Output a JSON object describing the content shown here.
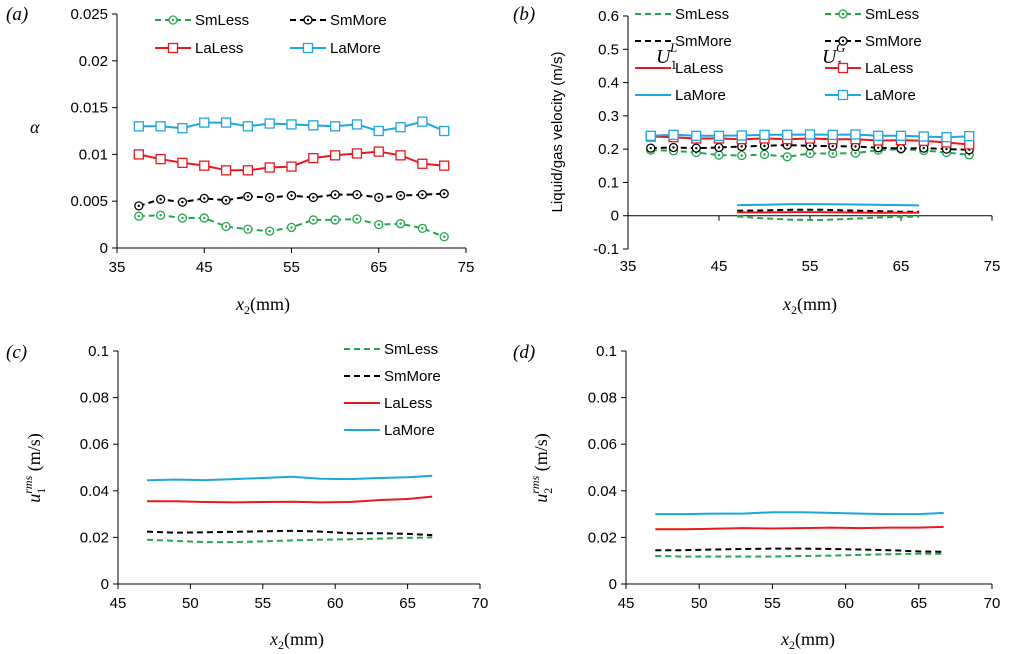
{
  "colors": {
    "SmLess": "#22a84a",
    "SmMore": "#000000",
    "LaLess": "#e8191f",
    "LaMore": "#1fa6e0"
  },
  "chart_data": [
    {
      "panel": "(a)",
      "type": "line",
      "xlabel": "x2(mm)",
      "ylabel": "α",
      "xlim": [
        35,
        75
      ],
      "ylim": [
        0,
        0.025
      ],
      "xticks": [
        "35",
        "45",
        "55",
        "65",
        "75"
      ],
      "yticks": [
        "0",
        "0.005",
        "0.01",
        "0.015",
        "0.02",
        "0.025"
      ],
      "legend_placement": "top",
      "x": [
        37.5,
        40,
        42.5,
        45,
        47.5,
        50,
        52.5,
        55,
        57.5,
        60,
        62.5,
        65,
        67.5,
        70,
        72.5
      ],
      "series": [
        {
          "name": "SmLess",
          "dash": true,
          "marker": "circle",
          "values": [
            0.0034,
            0.0035,
            0.0032,
            0.0032,
            0.0023,
            0.002,
            0.0018,
            0.0022,
            0.003,
            0.003,
            0.0031,
            0.0025,
            0.0026,
            0.0021,
            0.0012
          ]
        },
        {
          "name": "SmMore",
          "dash": true,
          "marker": "circle",
          "values": [
            0.0045,
            0.0052,
            0.0049,
            0.0053,
            0.0051,
            0.0055,
            0.0054,
            0.0056,
            0.0054,
            0.0057,
            0.0057,
            0.0054,
            0.0056,
            0.0057,
            0.0058
          ]
        },
        {
          "name": "LaLess",
          "dash": false,
          "marker": "square",
          "values": [
            0.01,
            0.0095,
            0.0091,
            0.0088,
            0.0083,
            0.0083,
            0.0086,
            0.0087,
            0.0096,
            0.0099,
            0.0101,
            0.0103,
            0.0099,
            0.009,
            0.0088
          ]
        },
        {
          "name": "LaMore",
          "dash": false,
          "marker": "square",
          "values": [
            0.013,
            0.013,
            0.0128,
            0.0134,
            0.0134,
            0.013,
            0.0133,
            0.0132,
            0.0131,
            0.013,
            0.0132,
            0.0125,
            0.0129,
            0.0135,
            0.0125
          ]
        }
      ]
    },
    {
      "panel": "(b)",
      "type": "line",
      "xlabel": "x2(mm)",
      "ylabel": "Liquid/gas velocity (m/s)",
      "xlim": [
        35,
        75
      ],
      "ylim": [
        -0.1,
        0.6
      ],
      "xticks": [
        "35",
        "45",
        "55",
        "65",
        "75"
      ],
      "yticks": [
        "-0.1",
        "0",
        "0.1",
        "0.2",
        "0.3",
        "0.4",
        "0.5",
        "0.6"
      ],
      "legend_placement": "top",
      "legend_group_labels": [
        "U1L",
        "U1G"
      ],
      "series": [
        {
          "name": "SmLess",
          "group": "U1L",
          "dash": true,
          "marker": "none",
          "x": [
            47,
            50,
            53,
            56,
            59,
            62,
            65,
            67
          ],
          "values": [
            -0.002,
            -0.008,
            -0.012,
            -0.013,
            -0.01,
            -0.006,
            -0.003,
            -0.003
          ]
        },
        {
          "name": "SmMore",
          "group": "U1L",
          "dash": true,
          "marker": "none",
          "x": [
            47,
            50,
            53,
            56,
            59,
            62,
            65,
            67
          ],
          "values": [
            0.015,
            0.016,
            0.018,
            0.018,
            0.016,
            0.014,
            0.012,
            0.012
          ]
        },
        {
          "name": "LaLess",
          "group": "U1L",
          "dash": false,
          "marker": "none",
          "x": [
            47,
            50,
            53,
            56,
            59,
            62,
            65,
            67
          ],
          "values": [
            0.01,
            0.01,
            0.011,
            0.011,
            0.01,
            0.009,
            0.009,
            0.009
          ]
        },
        {
          "name": "LaMore",
          "group": "U1L",
          "dash": false,
          "marker": "none",
          "x": [
            47,
            50,
            53,
            56,
            59,
            62,
            65,
            67
          ],
          "values": [
            0.032,
            0.033,
            0.035,
            0.035,
            0.034,
            0.033,
            0.032,
            0.031
          ]
        },
        {
          "name": "SmLess",
          "group": "U1G",
          "dash": true,
          "marker": "circle",
          "x": [
            37.5,
            40,
            42.5,
            45,
            47.5,
            50,
            52.5,
            55,
            57.5,
            60,
            62.5,
            65,
            67.5,
            70,
            72.5
          ],
          "values": [
            0.197,
            0.195,
            0.19,
            0.182,
            0.181,
            0.184,
            0.177,
            0.187,
            0.187,
            0.188,
            0.197,
            0.2,
            0.196,
            0.19,
            0.183
          ]
        },
        {
          "name": "SmMore",
          "group": "U1G",
          "dash": true,
          "marker": "circle",
          "x": [
            37.5,
            40,
            42.5,
            45,
            47.5,
            50,
            52.5,
            55,
            57.5,
            60,
            62.5,
            65,
            67.5,
            70,
            72.5
          ],
          "values": [
            0.203,
            0.205,
            0.203,
            0.205,
            0.208,
            0.21,
            0.212,
            0.21,
            0.209,
            0.208,
            0.204,
            0.202,
            0.203,
            0.2,
            0.198
          ]
        },
        {
          "name": "LaLess",
          "group": "U1G",
          "dash": false,
          "marker": "square",
          "x": [
            37.5,
            40,
            42.5,
            45,
            47.5,
            50,
            52.5,
            55,
            57.5,
            60,
            62.5,
            65,
            67.5,
            70,
            72.5
          ],
          "values": [
            0.238,
            0.236,
            0.232,
            0.232,
            0.23,
            0.232,
            0.23,
            0.232,
            0.23,
            0.23,
            0.226,
            0.227,
            0.225,
            0.22,
            0.214
          ]
        },
        {
          "name": "LaMore",
          "group": "U1G",
          "dash": false,
          "marker": "square",
          "x": [
            37.5,
            40,
            42.5,
            45,
            47.5,
            50,
            52.5,
            55,
            57.5,
            60,
            62.5,
            65,
            67.5,
            70,
            72.5
          ],
          "values": [
            0.24,
            0.243,
            0.24,
            0.24,
            0.241,
            0.243,
            0.243,
            0.244,
            0.243,
            0.244,
            0.24,
            0.24,
            0.238,
            0.236,
            0.239
          ]
        }
      ]
    },
    {
      "panel": "(c)",
      "type": "line",
      "xlabel": "x2(mm)",
      "ylabel": "u1rms (m/s)",
      "xlim": [
        45,
        70
      ],
      "ylim": [
        0,
        0.1
      ],
      "xticks": [
        "45",
        "50",
        "55",
        "60",
        "65",
        "70"
      ],
      "yticks": [
        "0",
        "0.02",
        "0.04",
        "0.06",
        "0.08",
        "0.1"
      ],
      "legend_placement": "top-right",
      "x": [
        47,
        49,
        51,
        53,
        55,
        57,
        59,
        61,
        63,
        65,
        66.7
      ],
      "series": [
        {
          "name": "SmLess",
          "dash": true,
          "marker": "none",
          "values": [
            0.019,
            0.0185,
            0.018,
            0.018,
            0.0183,
            0.0187,
            0.019,
            0.0192,
            0.0195,
            0.0198,
            0.02
          ]
        },
        {
          "name": "SmMore",
          "dash": true,
          "marker": "none",
          "values": [
            0.0225,
            0.022,
            0.0222,
            0.0224,
            0.0226,
            0.0228,
            0.0225,
            0.0218,
            0.0218,
            0.0215,
            0.021
          ]
        },
        {
          "name": "LaLess",
          "dash": false,
          "marker": "none",
          "values": [
            0.0355,
            0.0355,
            0.0352,
            0.035,
            0.0352,
            0.0353,
            0.035,
            0.0352,
            0.036,
            0.0365,
            0.0375
          ]
        },
        {
          "name": "LaMore",
          "dash": false,
          "marker": "none",
          "values": [
            0.0445,
            0.0448,
            0.0446,
            0.045,
            0.0455,
            0.046,
            0.0452,
            0.045,
            0.0455,
            0.0458,
            0.0465
          ]
        }
      ]
    },
    {
      "panel": "(d)",
      "type": "line",
      "xlabel": "x2(mm)",
      "ylabel": "u2rms (m/s)",
      "xlim": [
        45,
        70
      ],
      "ylim": [
        0,
        0.1
      ],
      "xticks": [
        "45",
        "50",
        "55",
        "60",
        "65",
        "70"
      ],
      "yticks": [
        "0",
        "0.02",
        "0.04",
        "0.06",
        "0.08",
        "0.1"
      ],
      "x": [
        47,
        49,
        51,
        53,
        55,
        57,
        59,
        61,
        63,
        65,
        66.7
      ],
      "series": [
        {
          "name": "SmLess",
          "dash": true,
          "marker": "none",
          "values": [
            0.012,
            0.0118,
            0.0118,
            0.0118,
            0.0118,
            0.012,
            0.0122,
            0.0125,
            0.0128,
            0.013,
            0.013
          ]
        },
        {
          "name": "SmMore",
          "dash": true,
          "marker": "none",
          "values": [
            0.0145,
            0.0145,
            0.0148,
            0.015,
            0.0152,
            0.0152,
            0.015,
            0.0148,
            0.0145,
            0.014,
            0.0138
          ]
        },
        {
          "name": "LaLess",
          "dash": false,
          "marker": "none",
          "values": [
            0.0235,
            0.0235,
            0.0237,
            0.024,
            0.0238,
            0.024,
            0.0242,
            0.024,
            0.0242,
            0.0242,
            0.0245
          ]
        },
        {
          "name": "LaMore",
          "dash": false,
          "marker": "none",
          "values": [
            0.03,
            0.03,
            0.0302,
            0.0302,
            0.0308,
            0.0308,
            0.0305,
            0.0302,
            0.03,
            0.03,
            0.0305
          ]
        }
      ]
    }
  ]
}
